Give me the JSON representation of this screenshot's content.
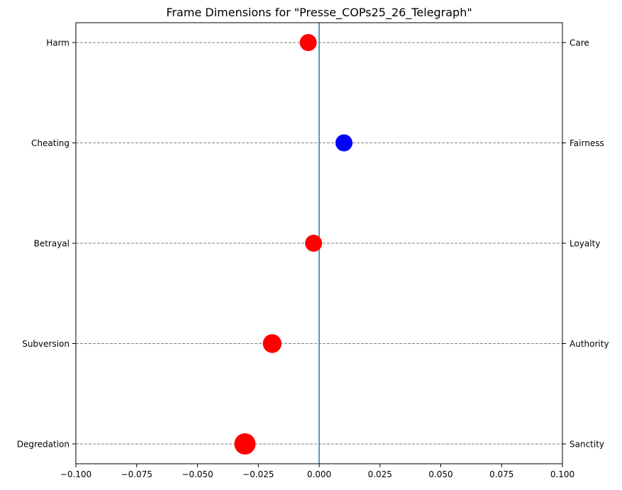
{
  "chart_data": {
    "type": "scatter",
    "title": "Frame Dimensions for \"Presse_COPs25_26_Telegraph\"",
    "xlabel": "",
    "ylabel": "",
    "xlim": [
      -0.1,
      0.1
    ],
    "xticks": [
      -0.1,
      -0.075,
      -0.05,
      -0.025,
      0.0,
      0.025,
      0.05,
      0.075,
      0.1
    ],
    "xtick_labels": [
      "−0.100",
      "−0.075",
      "−0.050",
      "−0.025",
      "0.000",
      "0.025",
      "0.050",
      "0.075",
      "0.100"
    ],
    "left_labels": [
      "Harm",
      "Cheating",
      "Betrayal",
      "Subversion",
      "Degredation"
    ],
    "right_labels": [
      "Care",
      "Fairness",
      "Loyalty",
      "Authority",
      "Sanctity"
    ],
    "points": [
      {
        "category": "Care",
        "x": -0.0045,
        "size": 1.0,
        "color": "#ff0000"
      },
      {
        "category": "Fairness",
        "x": 0.0102,
        "size": 1.0,
        "color": "#0000ff"
      },
      {
        "category": "Loyalty",
        "x": -0.0023,
        "size": 1.0,
        "color": "#ff0000"
      },
      {
        "category": "Authority",
        "x": -0.0193,
        "size": 1.1,
        "color": "#ff0000"
      },
      {
        "category": "Sanctity",
        "x": -0.0305,
        "size": 1.25,
        "color": "#ff0000"
      }
    ],
    "zero_line": {
      "x": 0.0,
      "color": "#1f77b4"
    },
    "grid": {
      "horizontal": true,
      "style": "dashed",
      "color": "#808080"
    }
  }
}
